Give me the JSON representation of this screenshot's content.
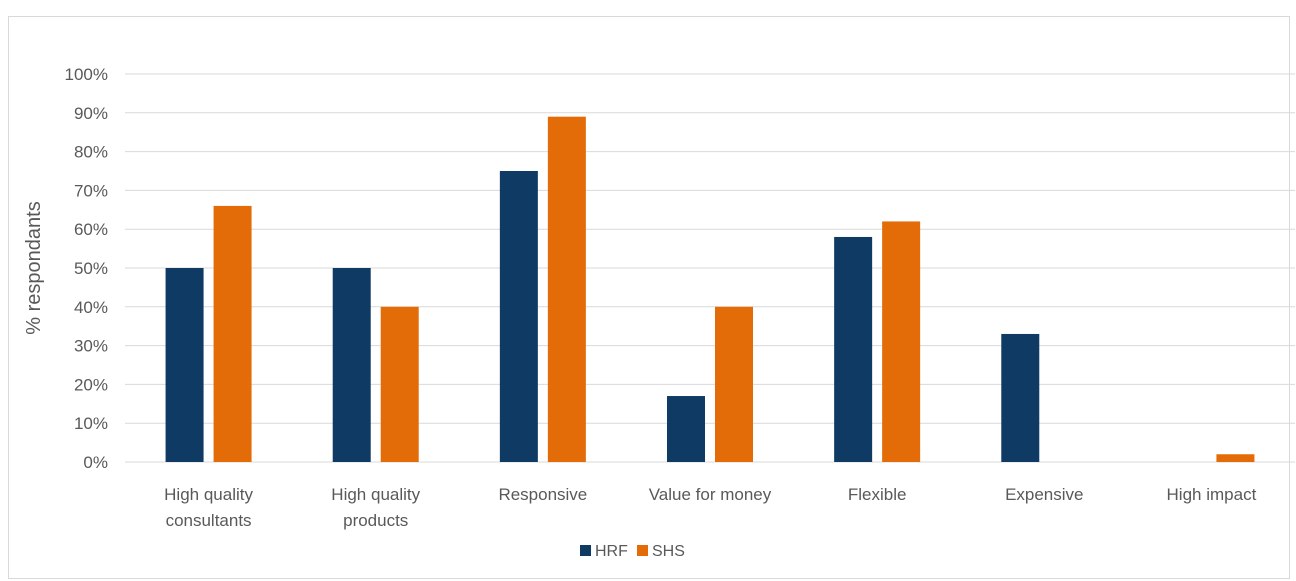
{
  "chart_data": {
    "type": "bar",
    "title": "",
    "xlabel": "",
    "ylabel": "% respondants",
    "ylim": [
      0,
      100
    ],
    "y_ticks": [
      "0%",
      "10%",
      "20%",
      "30%",
      "40%",
      "50%",
      "60%",
      "70%",
      "80%",
      "90%",
      "100%"
    ],
    "categories": [
      [
        "High quality",
        "consultants"
      ],
      [
        "High quality",
        "products"
      ],
      [
        "Responsive"
      ],
      [
        "Value for money"
      ],
      [
        "Flexible"
      ],
      [
        "Expensive"
      ],
      [
        "High impact"
      ]
    ],
    "series": [
      {
        "name": "HRF",
        "color": "#0e3a63",
        "values": [
          50,
          50,
          75,
          17,
          58,
          33,
          0
        ]
      },
      {
        "name": "SHS",
        "color": "#e36c09",
        "values": [
          66,
          40,
          89,
          40,
          62,
          0,
          2
        ]
      }
    ],
    "grid": true,
    "legend": "bottom-center"
  }
}
